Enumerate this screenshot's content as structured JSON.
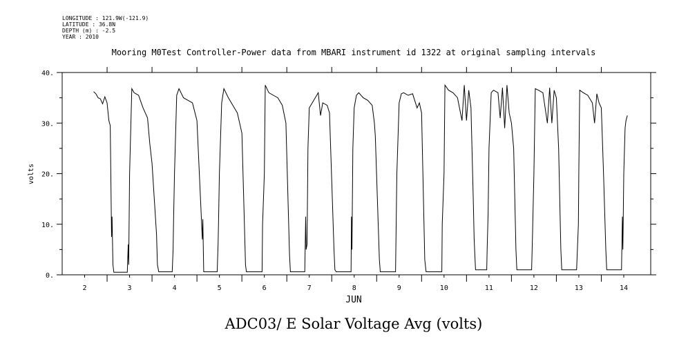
{
  "header": {
    "longitude": "LONGITUDE : 121.9W(-121.9)",
    "latitude": "LATITUDE : 36.8N",
    "depth": "DEPTH (m) : -2.5",
    "year": "YEAR : 2010"
  },
  "chart_data": {
    "type": "line",
    "title": "Mooring M0Test Controller-Power data from MBARI instrument id 1322 at original sampling intervals",
    "xlabel": "JUN",
    "ylabel": "volts",
    "caption": "ADC03/ E Solar Voltage Avg (volts)",
    "xlim": [
      1.5,
      14.6
    ],
    "ylim": [
      0,
      40
    ],
    "x_ticks": [
      2,
      3,
      4,
      5,
      6,
      7,
      8,
      9,
      10,
      11,
      12,
      13,
      14
    ],
    "x_tick_labels": [
      "2",
      "3",
      "4",
      "5",
      "6",
      "7",
      "8",
      "9",
      "10",
      "11",
      "12",
      "13",
      "14"
    ],
    "y_ticks": [
      0,
      10,
      20,
      30,
      40
    ],
    "y_tick_labels": [
      "0.",
      "10.",
      "20.",
      "30.",
      "40."
    ],
    "line_color": "#000000",
    "grid": false,
    "series": [
      {
        "name": "",
        "points": [
          [
            2.2,
            36.2
          ],
          [
            2.25,
            35.8
          ],
          [
            2.3,
            35.0
          ],
          [
            2.35,
            34.8
          ],
          [
            2.4,
            33.8
          ],
          [
            2.45,
            35.2
          ],
          [
            2.5,
            34.0
          ],
          [
            2.54,
            30.5
          ],
          [
            2.57,
            29.5
          ],
          [
            2.6,
            7.5
          ],
          [
            2.61,
            11.5
          ],
          [
            2.63,
            2.0
          ],
          [
            2.65,
            0.5
          ],
          [
            2.95,
            0.5
          ],
          [
            2.97,
            6.0
          ],
          [
            2.98,
            2.0
          ],
          [
            3.0,
            20.0
          ],
          [
            3.05,
            36.8
          ],
          [
            3.1,
            36.0
          ],
          [
            3.2,
            35.5
          ],
          [
            3.3,
            33.0
          ],
          [
            3.4,
            31.0
          ],
          [
            3.45,
            26.0
          ],
          [
            3.5,
            22.0
          ],
          [
            3.6,
            8.0
          ],
          [
            3.62,
            2.0
          ],
          [
            3.65,
            0.6
          ],
          [
            3.95,
            0.6
          ],
          [
            3.97,
            5.0
          ],
          [
            3.98,
            11.0
          ],
          [
            4.0,
            20.0
          ],
          [
            4.05,
            35.5
          ],
          [
            4.1,
            36.8
          ],
          [
            4.2,
            35.0
          ],
          [
            4.3,
            34.5
          ],
          [
            4.4,
            34.0
          ],
          [
            4.5,
            30.5
          ],
          [
            4.62,
            7.0
          ],
          [
            4.63,
            11.0
          ],
          [
            4.65,
            0.6
          ],
          [
            4.95,
            0.6
          ],
          [
            4.97,
            6.0
          ],
          [
            4.98,
            10.0
          ],
          [
            5.0,
            20.0
          ],
          [
            5.05,
            34.0
          ],
          [
            5.1,
            36.8
          ],
          [
            5.2,
            35.0
          ],
          [
            5.3,
            33.5
          ],
          [
            5.4,
            32.0
          ],
          [
            5.5,
            28.0
          ],
          [
            5.58,
            2.0
          ],
          [
            5.6,
            0.6
          ],
          [
            5.95,
            0.6
          ],
          [
            5.96,
            10.0
          ],
          [
            6.0,
            20.0
          ],
          [
            6.02,
            37.5
          ],
          [
            6.1,
            36.0
          ],
          [
            6.2,
            35.5
          ],
          [
            6.3,
            35.0
          ],
          [
            6.4,
            33.5
          ],
          [
            6.48,
            30.0
          ],
          [
            6.56,
            4.0
          ],
          [
            6.58,
            0.6
          ],
          [
            6.9,
            0.6
          ],
          [
            6.92,
            11.5
          ],
          [
            6.93,
            5.0
          ],
          [
            6.95,
            6.0
          ],
          [
            6.97,
            25.0
          ],
          [
            7.0,
            33.0
          ],
          [
            7.1,
            34.5
          ],
          [
            7.2,
            36.0
          ],
          [
            7.25,
            31.5
          ],
          [
            7.3,
            34.0
          ],
          [
            7.4,
            33.5
          ],
          [
            7.45,
            32.0
          ],
          [
            7.55,
            5.0
          ],
          [
            7.57,
            1.0
          ],
          [
            7.6,
            0.6
          ],
          [
            7.93,
            0.6
          ],
          [
            7.94,
            11.5
          ],
          [
            7.95,
            5.0
          ],
          [
            7.97,
            25.0
          ],
          [
            8.0,
            33.0
          ],
          [
            8.05,
            35.5
          ],
          [
            8.1,
            36.0
          ],
          [
            8.2,
            35.0
          ],
          [
            8.3,
            34.5
          ],
          [
            8.4,
            33.5
          ],
          [
            8.45,
            30.0
          ],
          [
            8.47,
            27.5
          ],
          [
            8.56,
            3.0
          ],
          [
            8.58,
            0.6
          ],
          [
            8.92,
            0.6
          ],
          [
            8.95,
            20.0
          ],
          [
            9.0,
            34.0
          ],
          [
            9.05,
            35.8
          ],
          [
            9.1,
            36.0
          ],
          [
            9.2,
            35.5
          ],
          [
            9.3,
            35.8
          ],
          [
            9.4,
            33.0
          ],
          [
            9.45,
            34.0
          ],
          [
            9.5,
            32.0
          ],
          [
            9.57,
            3.0
          ],
          [
            9.6,
            0.6
          ],
          [
            9.95,
            0.6
          ],
          [
            9.96,
            10.0
          ],
          [
            10.0,
            20.0
          ],
          [
            10.02,
            37.5
          ],
          [
            10.1,
            36.5
          ],
          [
            10.2,
            36.0
          ],
          [
            10.3,
            35.0
          ],
          [
            10.4,
            30.5
          ],
          [
            10.45,
            37.5
          ],
          [
            10.5,
            30.5
          ],
          [
            10.55,
            36.5
          ],
          [
            10.6,
            33.0
          ],
          [
            10.65,
            15.0
          ],
          [
            10.67,
            7.0
          ],
          [
            10.7,
            1.0
          ],
          [
            10.95,
            1.0
          ],
          [
            10.96,
            5.5
          ],
          [
            10.98,
            12.0
          ],
          [
            11.0,
            25.0
          ],
          [
            11.05,
            36.0
          ],
          [
            11.1,
            36.5
          ],
          [
            11.2,
            36.0
          ],
          [
            11.25,
            31.0
          ],
          [
            11.3,
            37.0
          ],
          [
            11.35,
            29.0
          ],
          [
            11.4,
            37.5
          ],
          [
            11.45,
            32.0
          ],
          [
            11.5,
            30.0
          ],
          [
            11.55,
            25.0
          ],
          [
            11.6,
            5.0
          ],
          [
            11.62,
            1.0
          ],
          [
            11.95,
            1.0
          ],
          [
            11.97,
            8.0
          ],
          [
            12.0,
            20.0
          ],
          [
            12.03,
            36.8
          ],
          [
            12.1,
            36.5
          ],
          [
            12.2,
            36.0
          ],
          [
            12.3,
            30.0
          ],
          [
            12.35,
            37.0
          ],
          [
            12.4,
            30.0
          ],
          [
            12.45,
            36.5
          ],
          [
            12.5,
            35.0
          ],
          [
            12.55,
            25.0
          ],
          [
            12.6,
            5.0
          ],
          [
            12.62,
            1.0
          ],
          [
            12.95,
            1.0
          ],
          [
            12.97,
            5.5
          ],
          [
            12.99,
            10.0
          ],
          [
            13.0,
            20.0
          ],
          [
            13.02,
            36.5
          ],
          [
            13.1,
            36.0
          ],
          [
            13.2,
            35.5
          ],
          [
            13.3,
            34.0
          ],
          [
            13.35,
            30.0
          ],
          [
            13.4,
            35.8
          ],
          [
            13.45,
            34.0
          ],
          [
            13.5,
            33.0
          ],
          [
            13.55,
            20.0
          ],
          [
            13.6,
            5.0
          ],
          [
            13.62,
            1.0
          ],
          [
            13.95,
            1.0
          ],
          [
            13.97,
            11.5
          ],
          [
            13.98,
            5.0
          ],
          [
            14.0,
            20.0
          ],
          [
            14.03,
            29.0
          ],
          [
            14.05,
            30.5
          ],
          [
            14.08,
            31.5
          ]
        ]
      }
    ]
  }
}
